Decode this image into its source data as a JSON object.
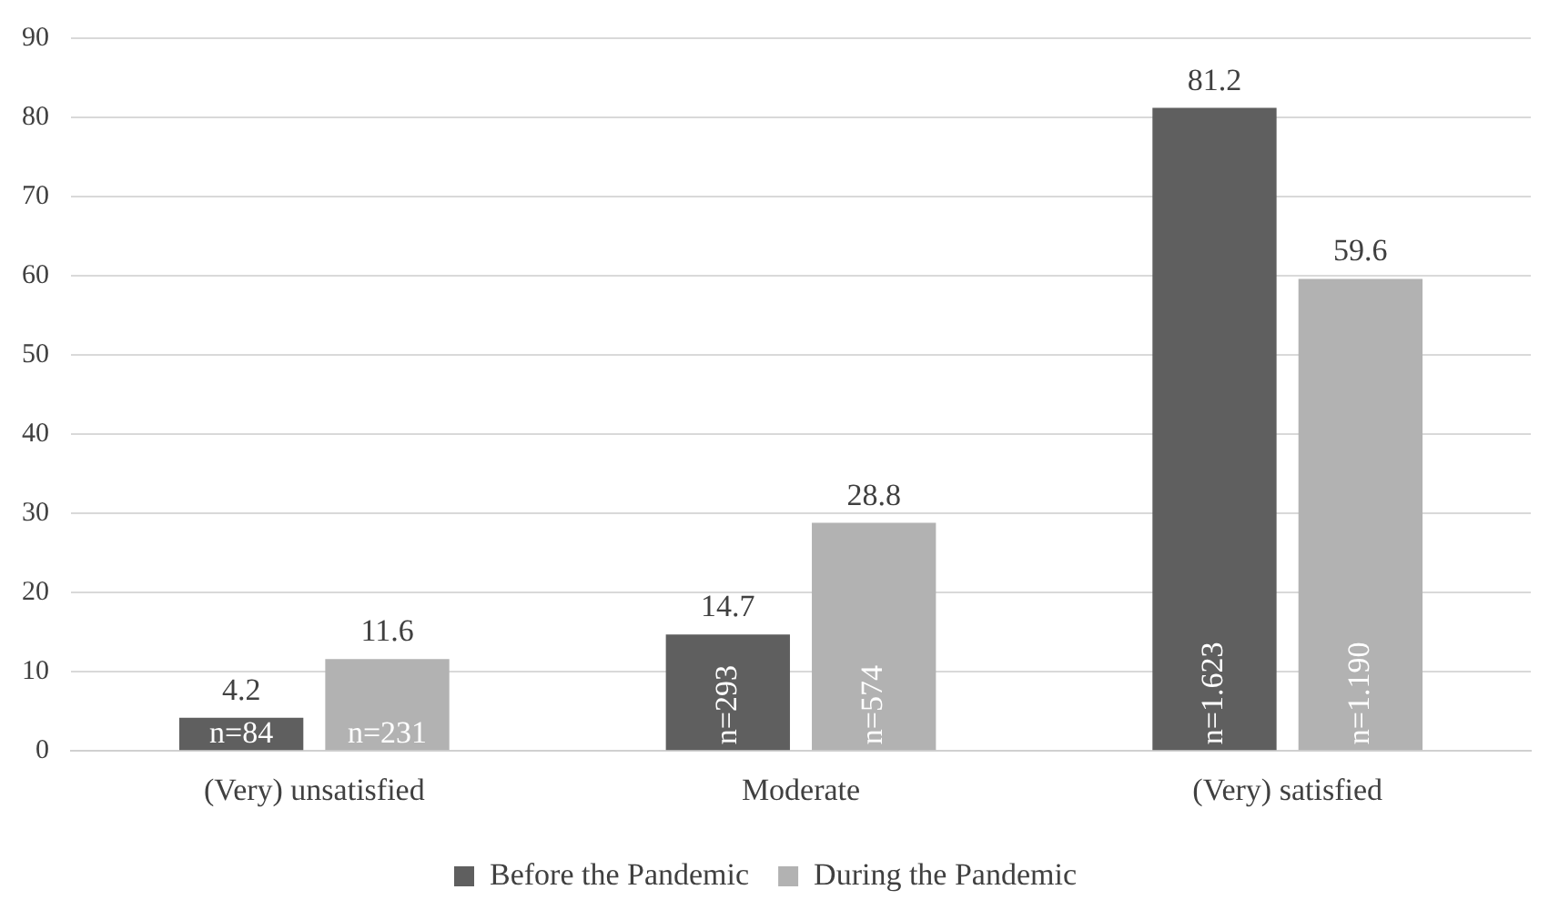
{
  "chart_data": {
    "type": "bar",
    "categories": [
      "(Very) unsatisfied",
      "Moderate",
      "(Very) satisfied"
    ],
    "series": [
      {
        "name": "Before the Pandemic",
        "color": "#5f5f5f",
        "values": [
          4.2,
          14.7,
          81.2
        ]
      },
      {
        "name": "During the Pandemic",
        "color": "#b2b2b2",
        "values": [
          11.6,
          28.8,
          59.6
        ]
      }
    ],
    "annotations": [
      "n=84",
      "n=293",
      "n=1.623",
      "n=231",
      "n=574",
      "n=1.190"
    ],
    "ylim": [
      0,
      90
    ],
    "yticks": [
      0,
      10,
      20,
      30,
      40,
      50,
      60,
      70,
      80,
      90
    ],
    "grid": "y",
    "legend": "bottom",
    "data_labels": true
  }
}
